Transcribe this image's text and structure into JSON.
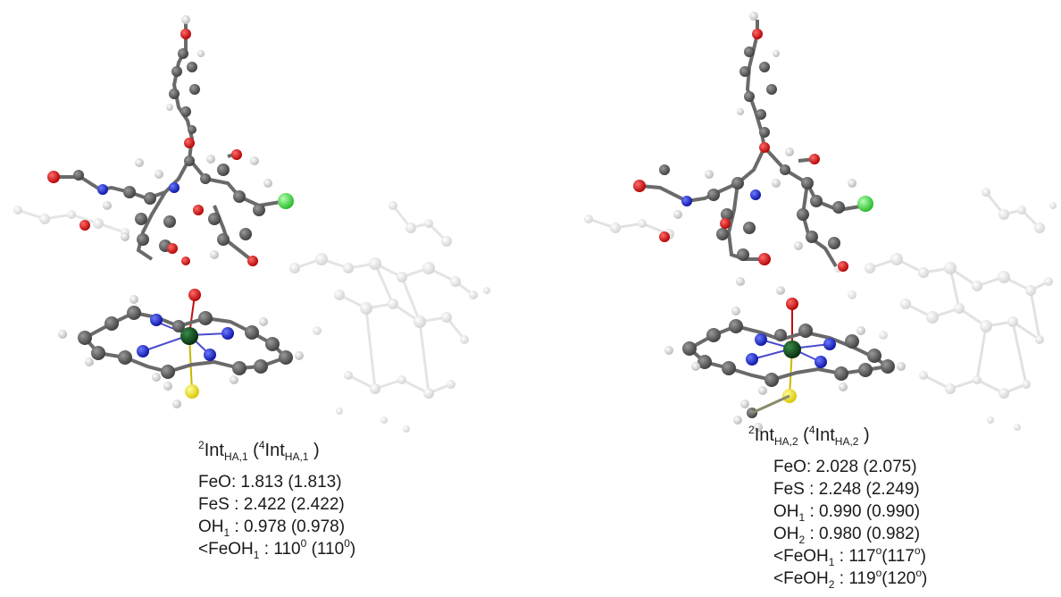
{
  "structures": [
    {
      "title": {
        "sup_a": "2",
        "main_a": "Int",
        "sub_a": "HA,1",
        "open": " (",
        "sup_b": "4",
        "main_b": "Int",
        "sub_b": "HA,1",
        "close": " )"
      },
      "params": [
        {
          "label": "FeO: ",
          "value": "1.813 (1.813)"
        },
        {
          "label": "FeS : ",
          "value": "2.422 (2.422)"
        },
        {
          "label": "OH",
          "sub": "1",
          "label2": " : ",
          "value": "0.978 (0.978)"
        },
        {
          "label": "<FeOH",
          "sub": "1",
          "label2": " : ",
          "value": "110",
          "sup": "0",
          "value2": " (110",
          "sup2": "0",
          "value3": ")"
        }
      ]
    },
    {
      "title": {
        "sup_a": "2",
        "main_a": "Int",
        "sub_a": "HA,2",
        "open": " (",
        "sup_b": "4",
        "main_b": "Int",
        "sub_b": "HA,2",
        "close": " )"
      },
      "params": [
        {
          "label": "FeO: ",
          "value": "2.028 (2.075)"
        },
        {
          "label": "FeS : ",
          "value": "2.248 (2.249)"
        },
        {
          "label": "OH",
          "sub": "1",
          "label2": " : ",
          "value": "0.990 (0.990)"
        },
        {
          "label": "OH",
          "sub": "2",
          "label2": " : ",
          "value": "0.980 (0.982)"
        },
        {
          "label": "<FeOH",
          "sub": "1",
          "label2": " : ",
          "value": "117",
          "sup": "o",
          "value2": "(117",
          "sup2": "o",
          "value3": ")"
        },
        {
          "label": "<FeOH",
          "sub": "2",
          "label2": " : ",
          "value": "119",
          "sup": "o",
          "value2": "(120",
          "sup2": "o",
          "value3": ")"
        }
      ]
    }
  ],
  "atom_colors": {
    "carbon": "#5a5a5a",
    "hydrogen": "#e3e3e3",
    "oxygen": "#d01010",
    "nitrogen": "#1020c8",
    "iron": "#0b4a16",
    "sulfur": "#f2e21a",
    "chlorine": "#3ad83a",
    "background_atom": "#dcdcdc"
  }
}
